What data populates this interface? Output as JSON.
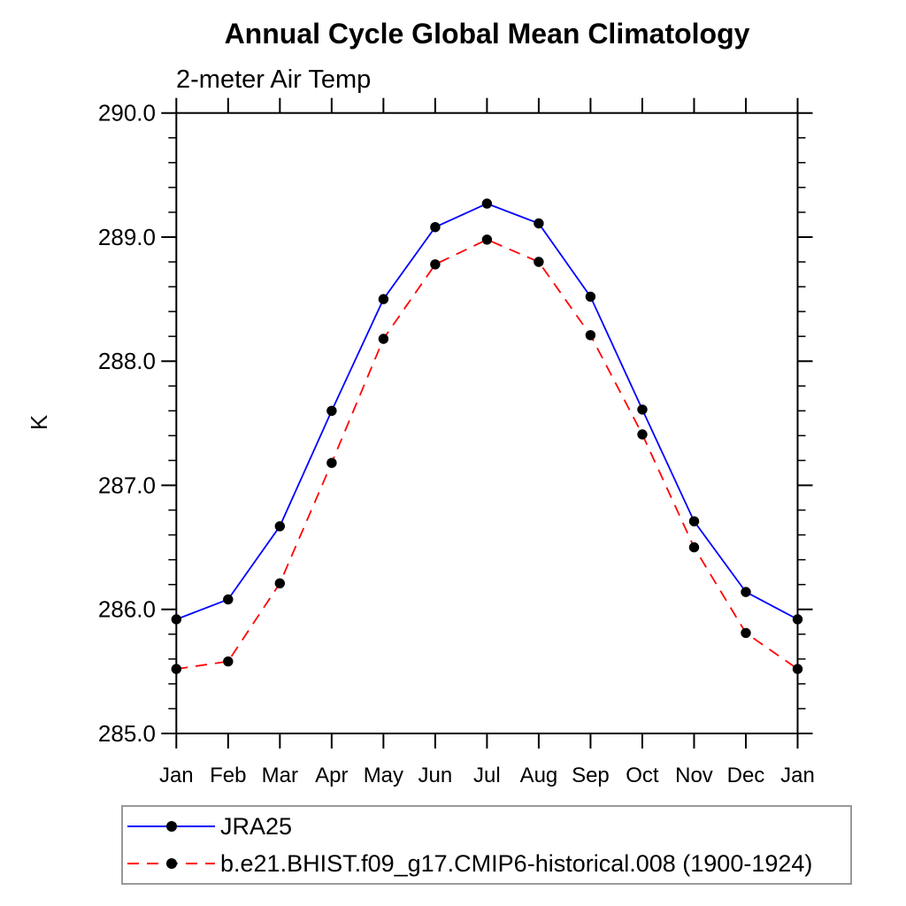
{
  "chart_data": {
    "type": "line",
    "title": "Annual Cycle Global Mean Climatology",
    "subtitle": "2-meter Air Temp",
    "ylabel": "K",
    "xlabel": "",
    "x": [
      "Jan",
      "Feb",
      "Mar",
      "Apr",
      "May",
      "Jun",
      "Jul",
      "Aug",
      "Sep",
      "Oct",
      "Nov",
      "Dec",
      "Jan"
    ],
    "ylim": [
      285.0,
      290.0
    ],
    "ytick_step": 1.0,
    "ytick_minor_step": 0.2,
    "ytick_labels": [
      "285.0",
      "286.0",
      "287.0",
      "288.0",
      "289.0",
      "290.0"
    ],
    "grid": "off",
    "legend_position": "below-plot-boxed",
    "marker": "filled-circle",
    "marker_color": "#000000",
    "frame_color": "#000000",
    "series": [
      {
        "name": "JRA25",
        "color": "#0000ff",
        "line_style": "solid",
        "values": [
          285.92,
          286.08,
          286.67,
          287.6,
          288.5,
          289.08,
          289.27,
          289.11,
          288.52,
          287.61,
          286.71,
          286.14,
          285.92
        ]
      },
      {
        "name": "b.e21.BHIST.f09_g17.CMIP6-historical.008 (1900-1924)",
        "color": "#ff0000",
        "line_style": "dashed",
        "values": [
          285.52,
          285.58,
          286.21,
          287.18,
          288.18,
          288.78,
          288.98,
          288.8,
          288.21,
          287.41,
          286.5,
          285.81,
          285.52
        ]
      }
    ]
  }
}
